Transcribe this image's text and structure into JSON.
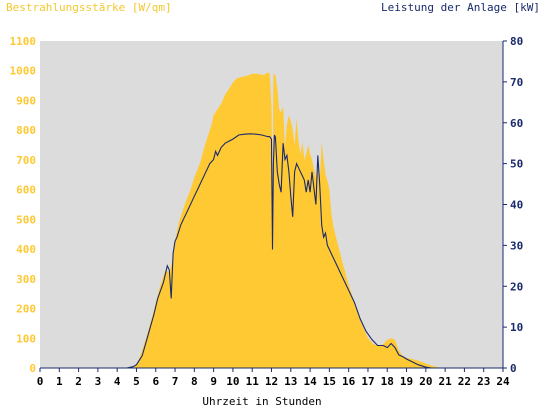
{
  "chart_data": {
    "type": "area",
    "left_title": "Bestrahlungsstärke [W/qm]",
    "right_title": "Leistung der Anlage [kW]",
    "xlabel": "Uhrzeit in Stunden",
    "xlim": [
      0,
      24
    ],
    "ylim_left": [
      0,
      1100
    ],
    "ylim_right": [
      0,
      80
    ],
    "x_ticks": [
      "0",
      "1",
      "2",
      "3",
      "4",
      "5",
      "6",
      "7",
      "8",
      "9",
      "10",
      "11",
      "12",
      "13",
      "14",
      "15",
      "16",
      "17",
      "18",
      "19",
      "20",
      "21",
      "22",
      "23",
      "24"
    ],
    "y_left_ticks": [
      "0",
      "100",
      "200",
      "300",
      "400",
      "500",
      "600",
      "700",
      "800",
      "900",
      "1000",
      "1100"
    ],
    "y_right_ticks": [
      "0",
      "10",
      "20",
      "30",
      "40",
      "50",
      "60",
      "70",
      "80"
    ],
    "grid": false,
    "colors": {
      "left_title": "#f2c830",
      "right_title": "#1a2a6c",
      "plot_background": "#dcdcdc",
      "irradiance_fill": "#ffc933",
      "power_line": "#1a2a6c",
      "left_axis_text": "#ffc933",
      "right_axis_text": "#1a2a6c"
    },
    "series": [
      {
        "axis": "left",
        "render": "area",
        "x": [
          0,
          4.8,
          5.0,
          5.2,
          5.5,
          5.8,
          6.0,
          6.2,
          6.5,
          6.7,
          6.9,
          7.0,
          7.2,
          7.5,
          7.8,
          8.0,
          8.3,
          8.6,
          8.9,
          9.0,
          9.2,
          9.4,
          9.6,
          9.8,
          10.0,
          10.2,
          10.5,
          10.8,
          11.0,
          11.3,
          11.6,
          11.8,
          11.9,
          12.0,
          12.05,
          12.1,
          12.2,
          12.3,
          12.4,
          12.5,
          12.6,
          12.7,
          12.8,
          12.9,
          13.0,
          13.1,
          13.2,
          13.3,
          13.4,
          13.5,
          13.6,
          13.7,
          13.8,
          13.9,
          14.0,
          14.1,
          14.2,
          14.3,
          14.4,
          14.5,
          14.6,
          14.7,
          14.8,
          14.9,
          15.0,
          15.1,
          15.2,
          15.3,
          15.5,
          15.7,
          16.0,
          16.3,
          16.6,
          17.0,
          17.3,
          17.6,
          17.8,
          18.0,
          18.2,
          18.4,
          18.6,
          18.8,
          19.0,
          19.3,
          19.6,
          20.0,
          20.3,
          20.6,
          20.8,
          21.0,
          24
        ],
        "values": [
          0,
          0,
          10,
          40,
          100,
          170,
          220,
          270,
          330,
          320,
          370,
          430,
          490,
          550,
          600,
          640,
          690,
          760,
          820,
          850,
          870,
          890,
          920,
          940,
          960,
          975,
          980,
          985,
          990,
          990,
          985,
          995,
          990,
          880,
          480,
          990,
          985,
          940,
          870,
          860,
          880,
          740,
          820,
          850,
          830,
          800,
          750,
          840,
          760,
          720,
          760,
          700,
          720,
          750,
          720,
          700,
          670,
          640,
          690,
          620,
          760,
          700,
          650,
          630,
          600,
          520,
          480,
          450,
          400,
          350,
          280,
          220,
          160,
          100,
          80,
          75,
          80,
          95,
          100,
          95,
          60,
          40,
          35,
          30,
          25,
          15,
          8,
          3,
          0,
          0,
          0
        ]
      },
      {
        "axis": "right",
        "render": "line",
        "x": [
          0,
          4.5,
          4.8,
          5.0,
          5.3,
          5.6,
          5.9,
          6.1,
          6.4,
          6.6,
          6.7,
          6.8,
          6.9,
          7.0,
          7.1,
          7.3,
          7.6,
          8.0,
          8.3,
          8.6,
          8.8,
          9.0,
          9.1,
          9.2,
          9.4,
          9.6,
          9.8,
          10.0,
          10.3,
          10.6,
          10.9,
          11.2,
          11.5,
          11.8,
          11.9,
          12.0,
          12.05,
          12.1,
          12.15,
          12.2,
          12.3,
          12.4,
          12.5,
          12.6,
          12.7,
          12.8,
          12.9,
          13.0,
          13.1,
          13.2,
          13.3,
          13.4,
          13.5,
          13.6,
          13.7,
          13.8,
          13.9,
          14.0,
          14.1,
          14.2,
          14.3,
          14.4,
          14.5,
          14.6,
          14.7,
          14.8,
          14.9,
          15.0,
          15.1,
          15.2,
          15.3,
          15.5,
          15.7,
          16.0,
          16.3,
          16.6,
          16.9,
          17.2,
          17.5,
          17.8,
          18.0,
          18.2,
          18.4,
          18.6,
          18.8,
          19.0,
          19.3,
          19.6,
          20.0,
          20.3,
          20.6,
          21.0,
          24
        ],
        "values": [
          0,
          0,
          0.3,
          0.8,
          3,
          8,
          13,
          17,
          21,
          25,
          24,
          17,
          28,
          31,
          32,
          35,
          38,
          42,
          45,
          48,
          50,
          51,
          53,
          52,
          54,
          55,
          55.5,
          56,
          57,
          57.2,
          57.3,
          57.2,
          57,
          56.6,
          56.6,
          56,
          29,
          50,
          57,
          56.5,
          48,
          45,
          43,
          55,
          51,
          52,
          48,
          42,
          37,
          48,
          50,
          49,
          48,
          47,
          46,
          43,
          46,
          43,
          48,
          44,
          40,
          52,
          45,
          35,
          32,
          33,
          30,
          29,
          28,
          27,
          26,
          24,
          22,
          19,
          16,
          12,
          9,
          7,
          5.5,
          5.5,
          5,
          6,
          5,
          3.2,
          2.8,
          2.2,
          1.5,
          0.8,
          0.2,
          0,
          0,
          0,
          0
        ]
      }
    ]
  }
}
